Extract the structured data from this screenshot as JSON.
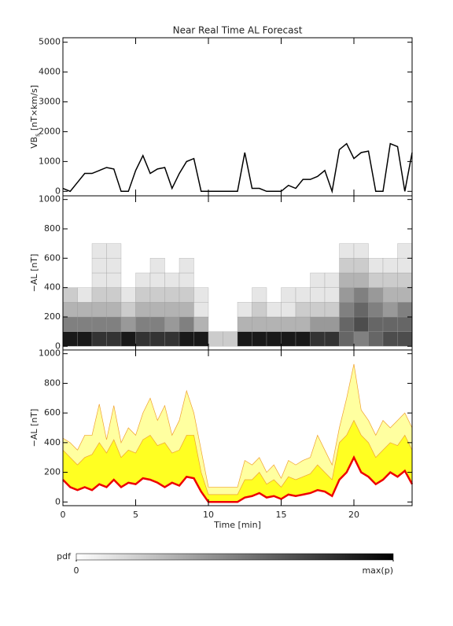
{
  "chart_data": [
    {
      "type": "line",
      "title": "Near Real Time AL Forecast",
      "ylabel": [
        "VB",
        "s",
        " [nT×km/s]"
      ],
      "x": [
        0,
        0.5,
        1,
        1.5,
        2,
        2.5,
        3,
        3.5,
        4,
        4.5,
        5,
        5.5,
        6,
        6.5,
        7,
        7.5,
        8,
        8.5,
        9,
        9.5,
        10,
        10.5,
        11,
        11.5,
        12,
        12.5,
        13,
        13.5,
        14,
        14.5,
        15,
        15.5,
        16,
        16.5,
        17,
        17.5,
        18,
        18.5,
        19,
        19.5,
        20,
        20.5,
        21,
        21.5,
        22,
        22.5,
        23,
        23.5,
        24
      ],
      "values": [
        100,
        0,
        300,
        600,
        600,
        700,
        800,
        750,
        0,
        0,
        700,
        1200,
        600,
        750,
        800,
        100,
        600,
        1000,
        1100,
        0,
        0,
        0,
        0,
        0,
        0,
        1300,
        100,
        100,
        0,
        0,
        0,
        200,
        100,
        400,
        400,
        500,
        700,
        0,
        1400,
        1600,
        1100,
        1300,
        1350,
        0,
        0,
        1600,
        1500,
        0,
        1300
      ],
      "color": "#000000",
      "xlim": [
        0,
        24
      ],
      "ylim": [
        -150,
        5150
      ],
      "yticks": [
        0,
        1000,
        2000,
        3000,
        4000,
        5000
      ]
    },
    {
      "type": "heatmap",
      "ylabel": "−AL [nT]",
      "bins_x": [
        0,
        1,
        2,
        3,
        4,
        5,
        6,
        7,
        8,
        9,
        10,
        11,
        12,
        13,
        14,
        15,
        16,
        17,
        18,
        19,
        20,
        21,
        22,
        23,
        24
      ],
      "bins_y": [
        0,
        100,
        200,
        300,
        400,
        500,
        600,
        700
      ],
      "pdf": [
        [
          0.9,
          0.5,
          0.3,
          0.2,
          0,
          0,
          0
        ],
        [
          0.9,
          0.5,
          0.3,
          0.1,
          0,
          0,
          0
        ],
        [
          0.8,
          0.5,
          0.3,
          0.2,
          0.1,
          0.1,
          0.1
        ],
        [
          0.8,
          0.5,
          0.3,
          0.2,
          0.1,
          0.1,
          0.1
        ],
        [
          0.9,
          0.4,
          0.2,
          0.1,
          0,
          0,
          0
        ],
        [
          0.8,
          0.5,
          0.3,
          0.2,
          0.1,
          0,
          0
        ],
        [
          0.8,
          0.5,
          0.3,
          0.2,
          0.1,
          0.1,
          0
        ],
        [
          0.8,
          0.4,
          0.3,
          0.2,
          0.1,
          0,
          0
        ],
        [
          0.9,
          0.5,
          0.3,
          0.2,
          0.1,
          0.1,
          0
        ],
        [
          0.9,
          0.3,
          0.1,
          0.1,
          0,
          0,
          0
        ],
        [
          0.2,
          0,
          0,
          0,
          0,
          0,
          0
        ],
        [
          0.2,
          0,
          0,
          0,
          0,
          0,
          0
        ],
        [
          0.9,
          0.3,
          0.1,
          0,
          0,
          0,
          0
        ],
        [
          0.9,
          0.3,
          0.2,
          0.1,
          0,
          0,
          0
        ],
        [
          0.9,
          0.3,
          0.1,
          0,
          0,
          0,
          0
        ],
        [
          0.9,
          0.3,
          0.1,
          0.1,
          0,
          0,
          0
        ],
        [
          0.9,
          0.3,
          0.2,
          0.1,
          0,
          0,
          0
        ],
        [
          0.8,
          0.4,
          0.2,
          0.1,
          0.1,
          0,
          0
        ],
        [
          0.8,
          0.4,
          0.2,
          0.1,
          0.1,
          0,
          0
        ],
        [
          0.6,
          0.6,
          0.5,
          0.4,
          0.3,
          0.2,
          0.1
        ],
        [
          0.5,
          0.7,
          0.6,
          0.5,
          0.3,
          0.2,
          0.1
        ],
        [
          0.6,
          0.6,
          0.5,
          0.4,
          0.2,
          0.1,
          0
        ],
        [
          0.7,
          0.6,
          0.4,
          0.3,
          0.2,
          0.1,
          0
        ],
        [
          0.7,
          0.6,
          0.5,
          0.3,
          0.2,
          0.1,
          0.1
        ]
      ],
      "xlim": [
        0,
        24
      ],
      "ylim": [
        -25,
        1025
      ],
      "yticks": [
        0,
        200,
        400,
        600,
        800,
        1000
      ]
    },
    {
      "type": "band",
      "ylabel": "−AL [nT]",
      "xlabel": "Time [min]",
      "x": [
        0,
        0.5,
        1,
        1.5,
        2,
        2.5,
        3,
        3.5,
        4,
        4.5,
        5,
        5.5,
        6,
        6.5,
        7,
        7.5,
        8,
        8.5,
        9,
        9.5,
        10,
        10.5,
        11,
        11.5,
        12,
        12.5,
        13,
        13.5,
        14,
        14.5,
        15,
        15.5,
        16,
        16.5,
        17,
        17.5,
        18,
        18.5,
        19,
        19.5,
        20,
        20.5,
        21,
        21.5,
        22,
        22.5,
        23,
        23.5,
        24
      ],
      "line": {
        "color": "#ee0000",
        "values": [
          150,
          100,
          80,
          100,
          80,
          120,
          100,
          150,
          100,
          130,
          120,
          160,
          150,
          130,
          100,
          130,
          110,
          170,
          160,
          70,
          0,
          0,
          0,
          0,
          0,
          30,
          40,
          60,
          30,
          40,
          20,
          50,
          40,
          50,
          60,
          80,
          70,
          40,
          150,
          200,
          300,
          200,
          170,
          120,
          150,
          200,
          170,
          210,
          120
        ]
      },
      "inner_upper": {
        "color": "#ffff22",
        "values": [
          350,
          300,
          250,
          300,
          320,
          400,
          330,
          420,
          300,
          350,
          330,
          420,
          450,
          380,
          400,
          330,
          350,
          450,
          450,
          200,
          50,
          50,
          50,
          50,
          50,
          150,
          150,
          200,
          120,
          150,
          100,
          170,
          150,
          170,
          190,
          250,
          200,
          150,
          400,
          450,
          550,
          450,
          400,
          300,
          350,
          400,
          380,
          450,
          350
        ]
      },
      "outer_upper": {
        "color": "#ffffa0",
        "values": [
          430,
          400,
          350,
          450,
          450,
          660,
          420,
          650,
          400,
          500,
          450,
          600,
          700,
          550,
          650,
          450,
          550,
          750,
          600,
          350,
          100,
          100,
          100,
          100,
          100,
          280,
          250,
          300,
          200,
          250,
          160,
          280,
          250,
          280,
          300,
          450,
          350,
          250,
          500,
          700,
          930,
          620,
          550,
          450,
          550,
          500,
          550,
          600,
          500
        ]
      },
      "edge_color": "#f0a030",
      "xlim": [
        0,
        24
      ],
      "xticks": [
        0,
        5,
        10,
        15,
        20
      ],
      "ylim": [
        -25,
        1025
      ],
      "yticks": [
        0,
        200,
        400,
        600,
        800,
        1000
      ]
    }
  ],
  "colorbar": {
    "title": "pdf",
    "lim": [
      0,
      1
    ],
    "ticks": [
      0,
      {
        "value": 1,
        "label": "max(p)"
      }
    ]
  }
}
